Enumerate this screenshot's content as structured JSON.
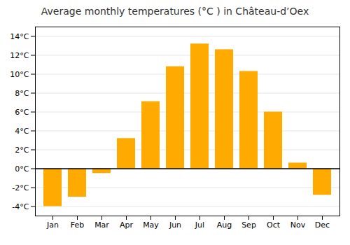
{
  "chart_data": {
    "type": "bar",
    "title": "Average monthly temperatures (°C ) in Château-d’Oex",
    "categories": [
      "Jan",
      "Feb",
      "Mar",
      "Apr",
      "May",
      "Jun",
      "Jul",
      "Aug",
      "Sep",
      "Oct",
      "Nov",
      "Dec"
    ],
    "values": [
      -4.0,
      -3.0,
      -0.5,
      3.2,
      7.1,
      10.8,
      13.2,
      12.6,
      10.3,
      6.0,
      0.6,
      -2.8
    ],
    "color": "#FFAA00",
    "ylim": [
      -5,
      15
    ],
    "yticks": [
      {
        "value": -4,
        "label": "-4°C"
      },
      {
        "value": -2,
        "label": "-2°C"
      },
      {
        "value": 0,
        "label": "0°C"
      },
      {
        "value": 2,
        "label": "2°C"
      },
      {
        "value": 4,
        "label": "4°C"
      },
      {
        "value": 6,
        "label": "6°C"
      },
      {
        "value": 8,
        "label": "8°C"
      },
      {
        "value": 10,
        "label": "10°C"
      },
      {
        "value": 12,
        "label": "12°C"
      },
      {
        "value": 14,
        "label": "14°C"
      }
    ],
    "grid": true
  }
}
